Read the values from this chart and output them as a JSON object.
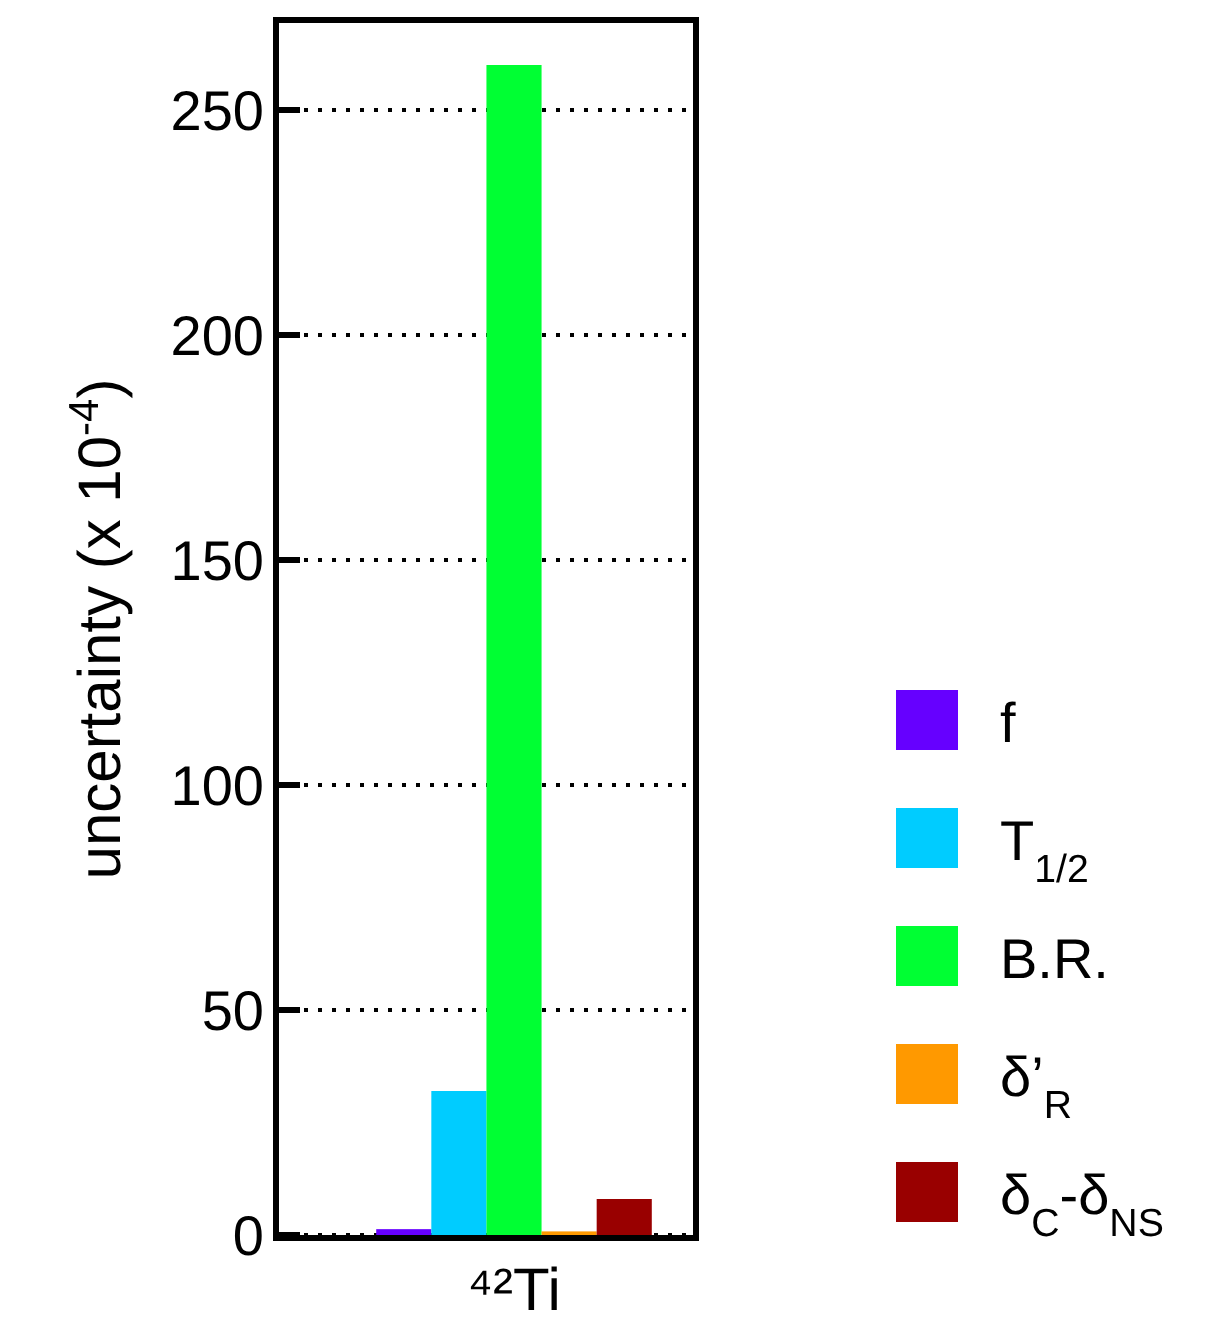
{
  "chart_data": {
    "type": "bar",
    "ylabel": "uncertainty (x 10$^{-4}$)",
    "categories": [
      "⁴²Ti"
    ],
    "series": [
      {
        "name": "f",
        "color": "#6600ff",
        "values": [
          1.3
        ]
      },
      {
        "name": "T$_{1/2}$",
        "color": "#00ccff",
        "values": [
          32
        ]
      },
      {
        "name": "B.R.",
        "color": "#00ff33",
        "values": [
          260
        ]
      },
      {
        "name": "δ’$_{R}$",
        "color": "#ff9900",
        "values": [
          0.8
        ]
      },
      {
        "name": "δ$_{C}$-δ$_{NS}$",
        "color": "#990000",
        "values": [
          8
        ]
      }
    ],
    "ylim": [
      0,
      270
    ],
    "yticks": [
      0,
      50,
      100,
      150,
      200,
      250
    ],
    "grid": "y",
    "legend": "right"
  }
}
